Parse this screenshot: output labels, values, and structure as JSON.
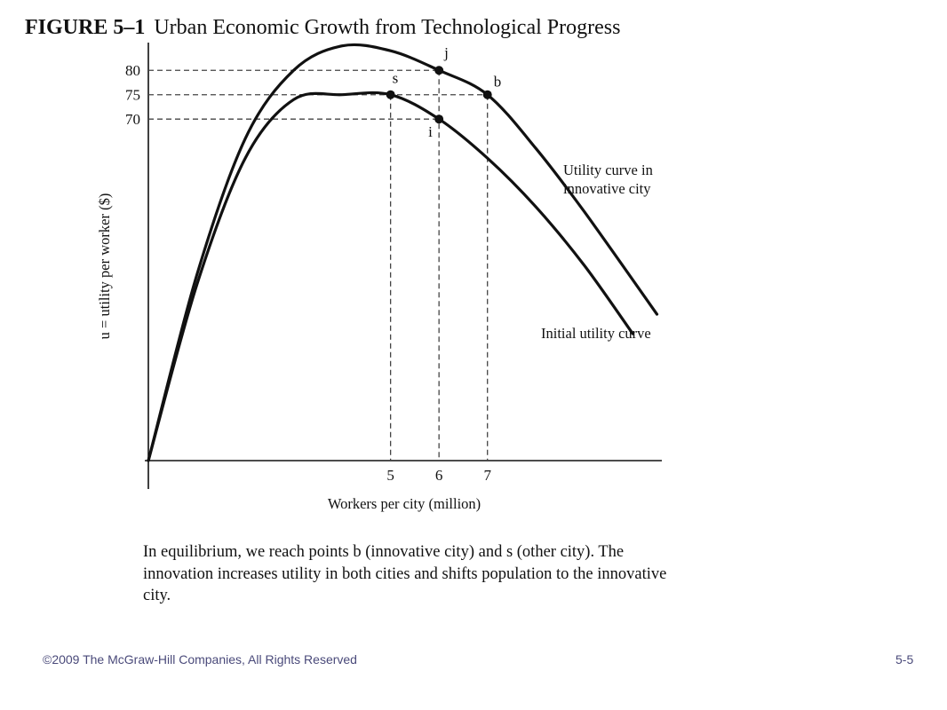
{
  "figure": {
    "label": "FIGURE 5–1",
    "title": "Urban Economic Growth from Technological Progress"
  },
  "chart_data": {
    "type": "line",
    "xlabel": "Workers per city (million)",
    "ylabel": "u = utility per worker ($)",
    "x_ticks": [
      "5",
      "6",
      "7"
    ],
    "y_ticks": [
      "80",
      "75",
      "70"
    ],
    "x_tick_values": [
      5,
      6,
      7
    ],
    "y_tick_values": [
      80,
      75,
      70
    ],
    "xlim": [
      0,
      10.6
    ],
    "ylim": [
      0,
      87.5
    ],
    "series": [
      {
        "name": "Utility curve in innovative city",
        "label_lines": [
          "Utility curve in",
          "innovative city"
        ],
        "x": [
          0,
          1,
          2,
          3,
          4,
          5,
          6,
          7,
          8,
          9,
          10.5
        ],
        "y": [
          0,
          38,
          66,
          80,
          85,
          84,
          80,
          75,
          64,
          51,
          30
        ]
      },
      {
        "name": "Initial utility curve",
        "label_lines": [
          "Initial utility curve"
        ],
        "x": [
          0,
          1,
          2,
          3,
          4,
          5,
          6,
          7,
          8,
          9,
          10
        ],
        "y": [
          0,
          36,
          62,
          74,
          75,
          75,
          70,
          62,
          52,
          40,
          26
        ]
      }
    ],
    "points": [
      {
        "label": "j",
        "x": 6,
        "y": 80
      },
      {
        "label": "s",
        "x": 5,
        "y": 75
      },
      {
        "label": "b",
        "x": 7,
        "y": 75
      },
      {
        "label": "i",
        "x": 6,
        "y": 70
      }
    ],
    "grid": false,
    "legend": "none"
  },
  "caption": "In equilibrium, we reach points b (innovative city) and s (other city). The innovation increases utility in both cities and shifts population to the innovative city.",
  "footer": {
    "copyright": "©2009 The McGraw-Hill Companies, All Rights Reserved",
    "page": "5-5"
  }
}
